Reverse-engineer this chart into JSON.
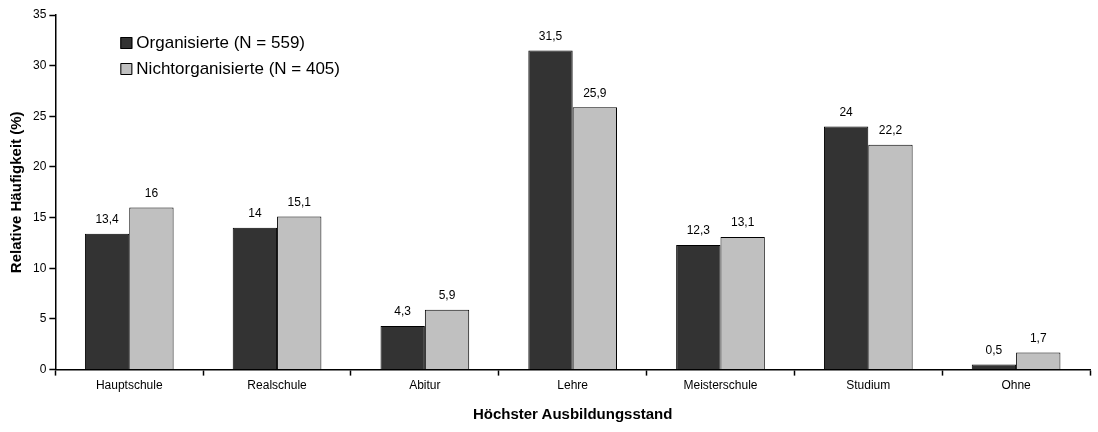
{
  "chart_data": {
    "type": "bar",
    "xlabel": "Höchster Ausbildungsstand",
    "ylabel": "Relative Häufigkeit (%)",
    "categories": [
      "Hauptschule",
      "Realschule",
      "Abitur",
      "Lehre",
      "Meisterschule",
      "Studium",
      "Ohne"
    ],
    "series": [
      {
        "name": "Organisierte (N = 559)",
        "color": "#333333",
        "values": [
          13.4,
          14,
          4.3,
          31.5,
          12.3,
          24,
          0.5
        ],
        "value_labels": [
          "13,4",
          "14",
          "4,3",
          "31,5",
          "12,3",
          "24",
          "0,5"
        ]
      },
      {
        "name": "Nichtorganisierte (N = 405)",
        "color": "#c0c0c0",
        "values": [
          16,
          15.1,
          5.9,
          25.9,
          13.1,
          22.2,
          1.7
        ],
        "value_labels": [
          "16",
          "15,1",
          "5,9",
          "25,9",
          "13,1",
          "22,2",
          "1,7"
        ]
      }
    ],
    "ylim": [
      0,
      35
    ],
    "yticks": [
      0,
      5,
      10,
      15,
      20,
      25,
      30,
      35
    ],
    "grid": false,
    "legend": "top left"
  }
}
